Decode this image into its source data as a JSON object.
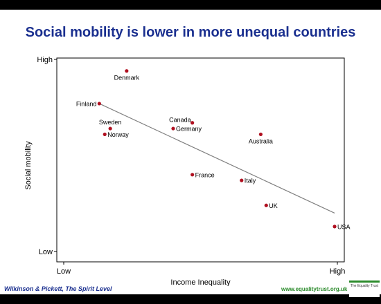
{
  "title": "Social mobility is lower in more unequal countries",
  "footer": {
    "source": "Wilkinson & Pickett, The Spirit Level",
    "url": "www.equalitytrust.org.uk",
    "logo_text": "The Equality Trust"
  },
  "chart_data": {
    "type": "scatter",
    "title": "Social mobility is lower in more unequal countries",
    "xlabel": "Income Inequality",
    "ylabel": "Social mobility",
    "xlim": [
      0,
      100
    ],
    "ylim": [
      0,
      100
    ],
    "x_ticks": [
      {
        "value": 0,
        "label": "Low"
      },
      {
        "value": 100,
        "label": "High"
      }
    ],
    "y_ticks": [
      {
        "value": 0,
        "label": "Low"
      },
      {
        "value": 100,
        "label": "High"
      }
    ],
    "grid": false,
    "point_color": "#b01020",
    "trendline_color": "#808080",
    "points": [
      {
        "name": "Denmark",
        "x": 23,
        "y": 94,
        "label_pos": "below"
      },
      {
        "name": "Finland",
        "x": 13,
        "y": 77,
        "label_pos": "left"
      },
      {
        "name": "Sweden",
        "x": 17,
        "y": 64,
        "label_pos": "above"
      },
      {
        "name": "Norway",
        "x": 15,
        "y": 61,
        "label_pos": "right"
      },
      {
        "name": "Canada",
        "x": 47,
        "y": 67,
        "label_pos": "above-left"
      },
      {
        "name": "Germany",
        "x": 40,
        "y": 64,
        "label_pos": "right"
      },
      {
        "name": "Australia",
        "x": 72,
        "y": 61,
        "label_pos": "below"
      },
      {
        "name": "France",
        "x": 47,
        "y": 40,
        "label_pos": "right"
      },
      {
        "name": "Italy",
        "x": 65,
        "y": 37,
        "label_pos": "right"
      },
      {
        "name": "UK",
        "x": 74,
        "y": 24,
        "label_pos": "right"
      },
      {
        "name": "USA",
        "x": 99,
        "y": 13,
        "label_pos": "right"
      }
    ],
    "trendline": {
      "x": [
        13,
        99
      ],
      "y": [
        77,
        20
      ]
    }
  }
}
